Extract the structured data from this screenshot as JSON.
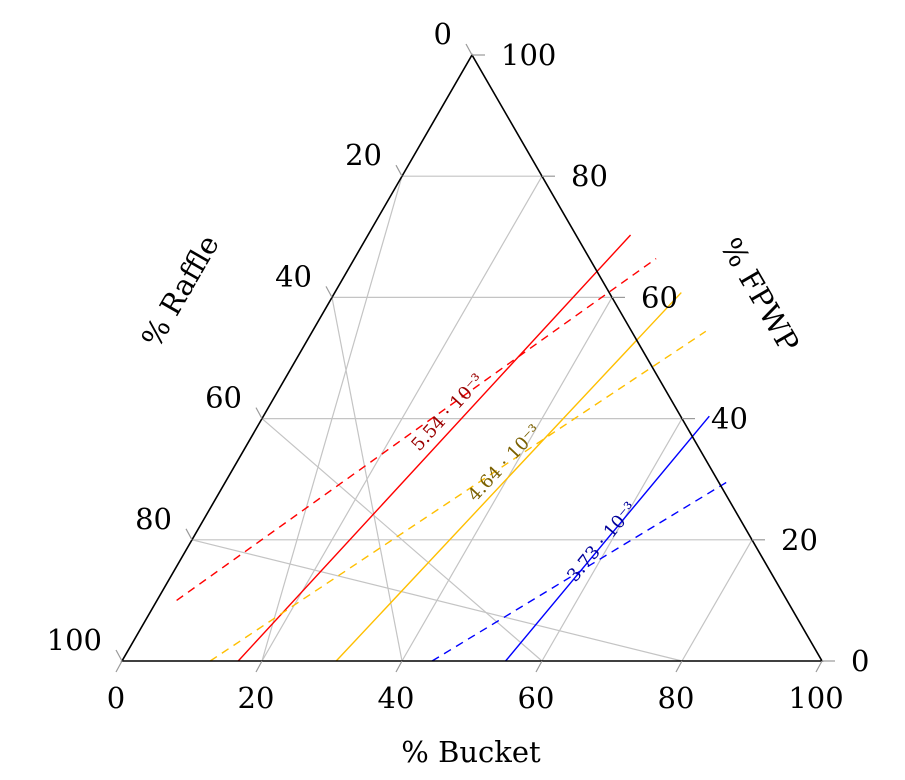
{
  "chart_data": {
    "type": "ternary",
    "axes": {
      "bottom": {
        "label": "% Bucket",
        "ticks": [
          "0",
          "20",
          "40",
          "60",
          "80",
          "100"
        ]
      },
      "left": {
        "label": "% Raffle",
        "ticks": [
          "0",
          "20",
          "40",
          "60",
          "80",
          "100"
        ]
      },
      "right": {
        "label": "% FPWP",
        "ticks": [
          "0",
          "20",
          "40",
          "60",
          "80",
          "100"
        ]
      }
    },
    "range": [
      0,
      100
    ],
    "grid_step": 20,
    "grid": true,
    "series": [
      {
        "color": "#ff0000",
        "label": "5.54 · 10⁻³",
        "solid": [
          {
            "bucket": 16.6,
            "fpwp": 0
          },
          {
            "bucket": 37.5,
            "fpwp": 70.3
          }
        ],
        "dashed": [
          {
            "bucket": 2.8,
            "fpwp": 10
          },
          {
            "bucket": 43.1,
            "fpwp": 66.4
          }
        ]
      },
      {
        "color": "#ffbf00",
        "label": "4.64 · 10⁻³",
        "solid": [
          {
            "bucket": 30.6,
            "fpwp": 0
          },
          {
            "bucket": 49.5,
            "fpwp": 60.8
          }
        ],
        "dashed": [
          {
            "bucket": 12.6,
            "fpwp": 0
          },
          {
            "bucket": 56.2,
            "fpwp": 54.4
          }
        ]
      },
      {
        "color": "#0000ff",
        "label": "3.73 · 10⁻³",
        "solid": [
          {
            "bucket": 54.8,
            "fpwp": 0
          },
          {
            "bucket": 63.7,
            "fpwp": 40.4
          }
        ],
        "dashed": [
          {
            "bucket": 44.3,
            "fpwp": 0
          },
          {
            "bucket": 72.0,
            "fpwp": 29.9
          }
        ]
      }
    ]
  }
}
